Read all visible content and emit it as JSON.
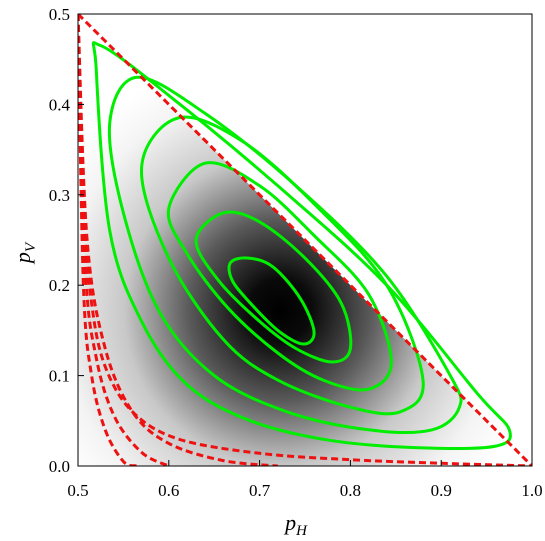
{
  "chart_data": {
    "type": "contour",
    "title": "",
    "xlabel": "p",
    "xlabel_sub": "H",
    "ylabel": "p",
    "ylabel_sub": "V",
    "xlim": [
      0.5,
      1.0
    ],
    "ylim": [
      0.0,
      0.5
    ],
    "x_ticks": [
      "0.5",
      "0.6",
      "0.7",
      "0.8",
      "0.9",
      "1.0"
    ],
    "y_ticks": [
      "0.0",
      "0.1",
      "0.2",
      "0.3",
      "0.4",
      "0.5"
    ],
    "region": {
      "vertices": [
        [
          0.5,
          0.0
        ],
        [
          1.0,
          0.0
        ],
        [
          0.5,
          0.5
        ]
      ],
      "fill": "density (white to black), maximum near (0.72, 0.18)"
    },
    "series": [
      {
        "style": "solid",
        "color": "#00ee00",
        "curves": [
          [
            [
              0.668,
              0.225
            ],
            [
              0.688,
              0.23
            ],
            [
              0.715,
              0.22
            ],
            [
              0.745,
              0.185
            ],
            [
              0.76,
              0.148
            ],
            [
              0.748,
              0.135
            ],
            [
              0.72,
              0.15
            ],
            [
              0.69,
              0.18
            ],
            [
              0.67,
              0.205
            ]
          ],
          [
            [
              0.63,
              0.25
            ],
            [
              0.66,
              0.28
            ],
            [
              0.7,
              0.27
            ],
            [
              0.75,
              0.23
            ],
            [
              0.79,
              0.18
            ],
            [
              0.8,
              0.13
            ],
            [
              0.78,
              0.115
            ],
            [
              0.74,
              0.13
            ],
            [
              0.7,
              0.16
            ],
            [
              0.655,
              0.205
            ]
          ],
          [
            [
              0.6,
              0.285
            ],
            [
              0.64,
              0.335
            ],
            [
              0.7,
              0.31
            ],
            [
              0.76,
              0.255
            ],
            [
              0.82,
              0.19
            ],
            [
              0.845,
              0.115
            ],
            [
              0.82,
              0.085
            ],
            [
              0.77,
              0.095
            ],
            [
              0.72,
              0.125
            ],
            [
              0.665,
              0.175
            ],
            [
              0.62,
              0.235
            ]
          ],
          [
            [
              0.57,
              0.33
            ],
            [
              0.61,
              0.385
            ],
            [
              0.68,
              0.36
            ],
            [
              0.76,
              0.29
            ],
            [
              0.84,
              0.2
            ],
            [
              0.88,
              0.095
            ],
            [
              0.855,
              0.06
            ],
            [
              0.8,
              0.065
            ],
            [
              0.72,
              0.095
            ],
            [
              0.66,
              0.14
            ],
            [
              0.6,
              0.23
            ]
          ],
          [
            [
              0.535,
              0.38
            ],
            [
              0.565,
              0.43
            ],
            [
              0.64,
              0.39
            ],
            [
              0.74,
              0.31
            ],
            [
              0.84,
              0.21
            ],
            [
              0.91,
              0.1
            ],
            [
              0.92,
              0.065
            ],
            [
              0.89,
              0.04
            ],
            [
              0.82,
              0.04
            ],
            [
              0.73,
              0.06
            ],
            [
              0.65,
              0.1
            ],
            [
              0.59,
              0.17
            ],
            [
              0.55,
              0.28
            ]
          ],
          [
            [
              0.52,
              0.44
            ],
            [
              0.525,
              0.465
            ],
            [
              0.6,
              0.41
            ],
            [
              0.72,
              0.31
            ],
            [
              0.84,
              0.2
            ],
            [
              0.94,
              0.08
            ],
            [
              0.975,
              0.04
            ],
            [
              0.96,
              0.022
            ],
            [
              0.88,
              0.02
            ],
            [
              0.78,
              0.028
            ],
            [
              0.69,
              0.05
            ],
            [
              0.62,
              0.09
            ],
            [
              0.57,
              0.16
            ],
            [
              0.535,
              0.26
            ]
          ]
        ]
      },
      {
        "style": "dashed",
        "color": "#ee1111",
        "curves": [
          [
            [
              0.5,
              0.5
            ],
            [
              1.0,
              0.0
            ]
          ],
          [
            [
              0.5,
              0.5
            ],
            [
              0.505,
              0.3
            ],
            [
              0.515,
              0.18
            ],
            [
              0.53,
              0.11
            ],
            [
              0.56,
              0.06
            ],
            [
              0.61,
              0.03
            ],
            [
              0.7,
              0.014
            ],
            [
              0.8,
              0.007
            ],
            [
              0.9,
              0.003
            ],
            [
              1.0,
              0.0
            ]
          ],
          [
            [
              0.5,
              0.5
            ],
            [
              0.51,
              0.25
            ],
            [
              0.53,
              0.13
            ],
            [
              0.56,
              0.06
            ],
            [
              0.6,
              0.025
            ],
            [
              0.66,
              0.006
            ],
            [
              0.72,
              0.0
            ]
          ],
          [
            [
              0.5,
              0.5
            ],
            [
              0.508,
              0.22
            ],
            [
              0.52,
              0.12
            ],
            [
              0.54,
              0.055
            ],
            [
              0.57,
              0.015
            ],
            [
              0.6,
              0.0
            ]
          ],
          [
            [
              0.5,
              0.5
            ],
            [
              0.506,
              0.2
            ],
            [
              0.515,
              0.1
            ],
            [
              0.53,
              0.04
            ],
            [
              0.55,
              0.005
            ],
            [
              0.565,
              0.0
            ]
          ]
        ]
      }
    ]
  }
}
